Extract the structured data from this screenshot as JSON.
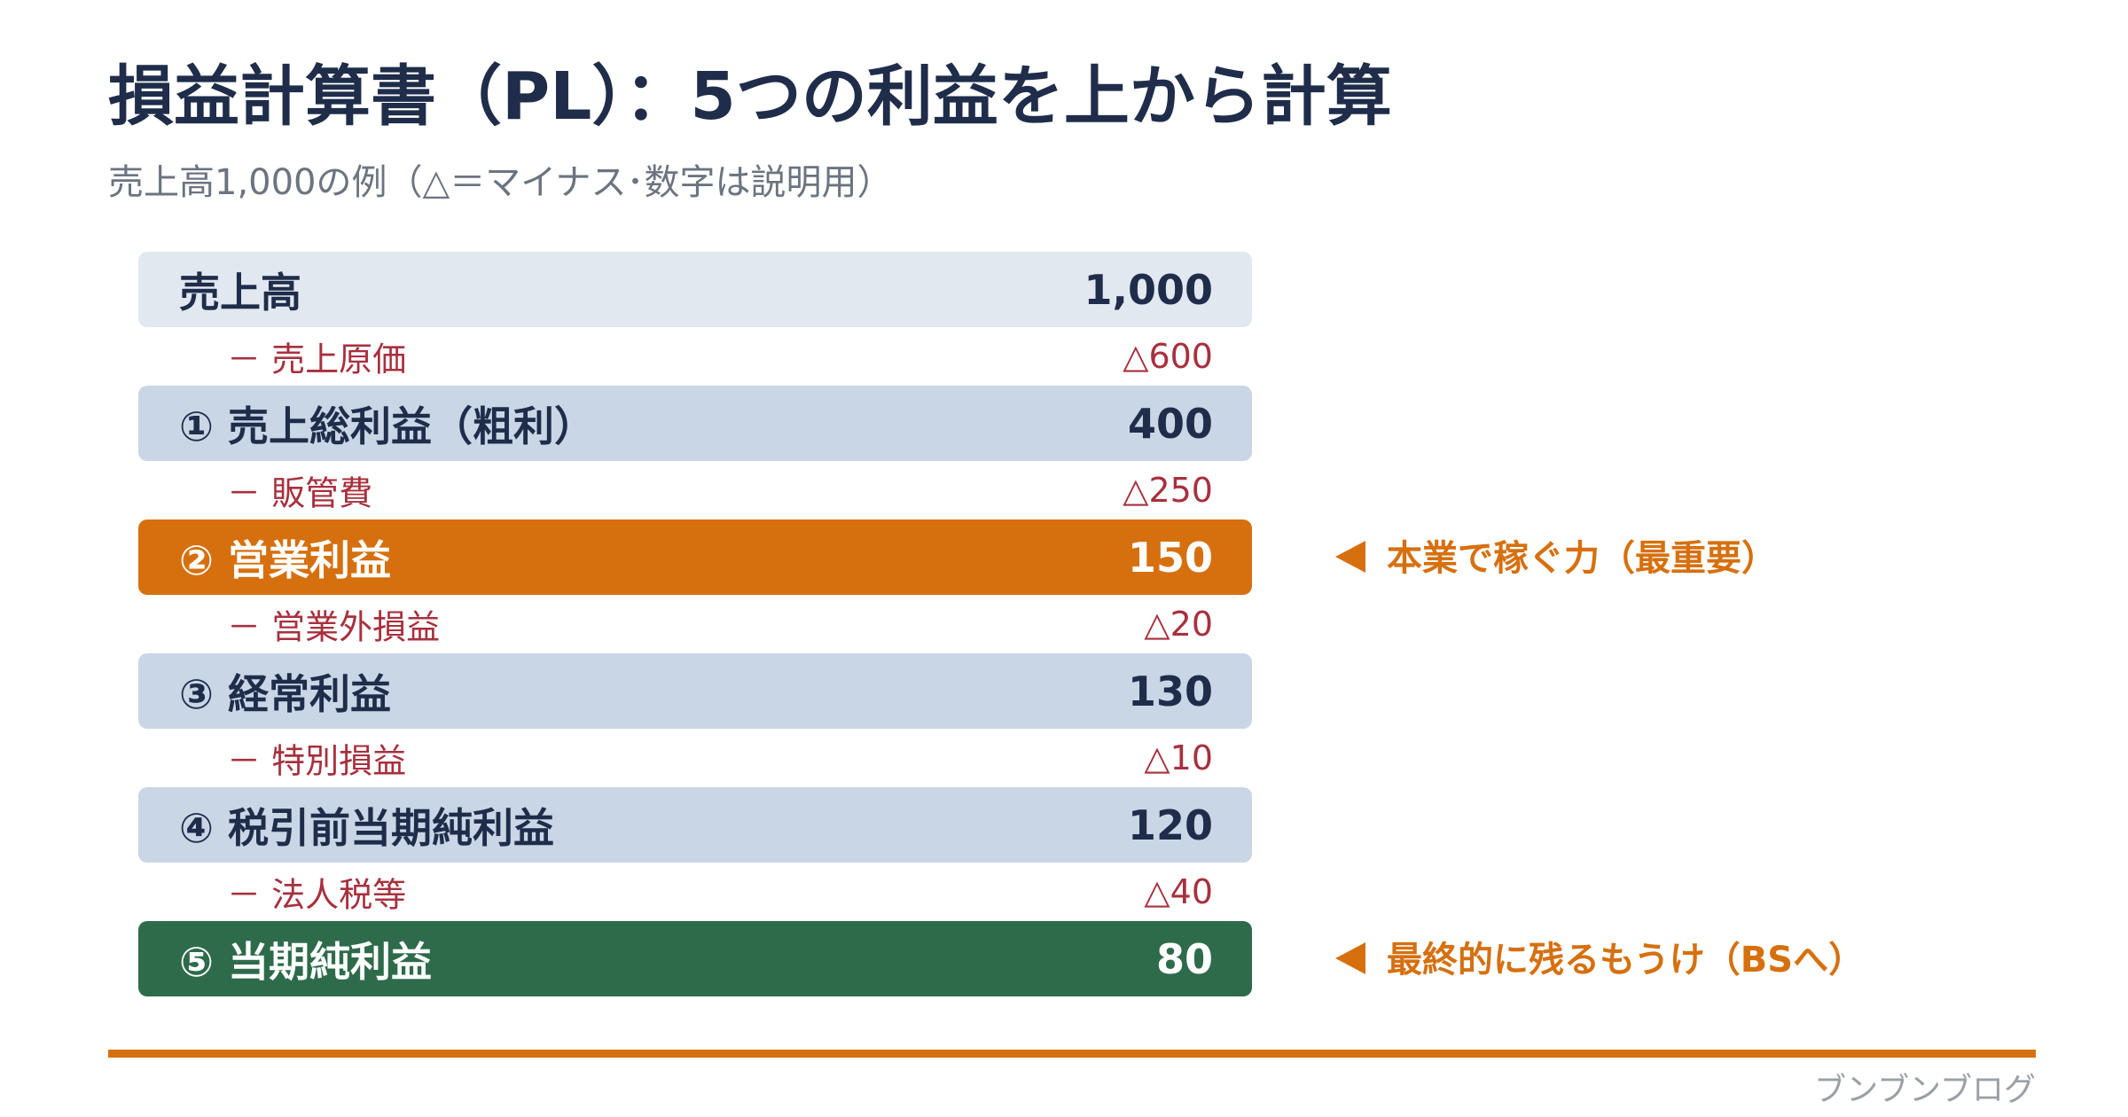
{
  "title": "損益計算書（PL）：5つの利益を上から計算",
  "subtitle": "売上高1,000の例（△＝マイナス･数字は説明用）",
  "rows": [
    {
      "label": "売上高",
      "value": "1,000"
    },
    {
      "label": "－ 売上原価",
      "value": "△600"
    },
    {
      "label": "① 売上総利益（粗利）",
      "value": "400"
    },
    {
      "label": "－ 販管費",
      "value": "△250"
    },
    {
      "label": "② 営業利益",
      "value": "150"
    },
    {
      "label": "－ 営業外損益",
      "value": "△20"
    },
    {
      "label": "③ 経常利益",
      "value": "130"
    },
    {
      "label": "－ 特別損益",
      "value": "△10"
    },
    {
      "label": "④ 税引前当期純利益",
      "value": "120"
    },
    {
      "label": "－ 法人税等",
      "value": "△40"
    },
    {
      "label": "⑤ 当期純利益",
      "value": "80"
    }
  ],
  "notes": {
    "operating": "本業で稼ぐ力（最重要）",
    "net": "最終的に残るもうけ（BSへ）"
  },
  "footer": "ブンブンブログ",
  "colors": {
    "navy": "#1f2d4a",
    "light_row": "#c9d6e6",
    "first_row": "#e2e8f0",
    "orange": "#d6700f",
    "green": "#2e6b4b",
    "deduction_red": "#a8303e",
    "footer_gray": "#9aa0a6"
  }
}
